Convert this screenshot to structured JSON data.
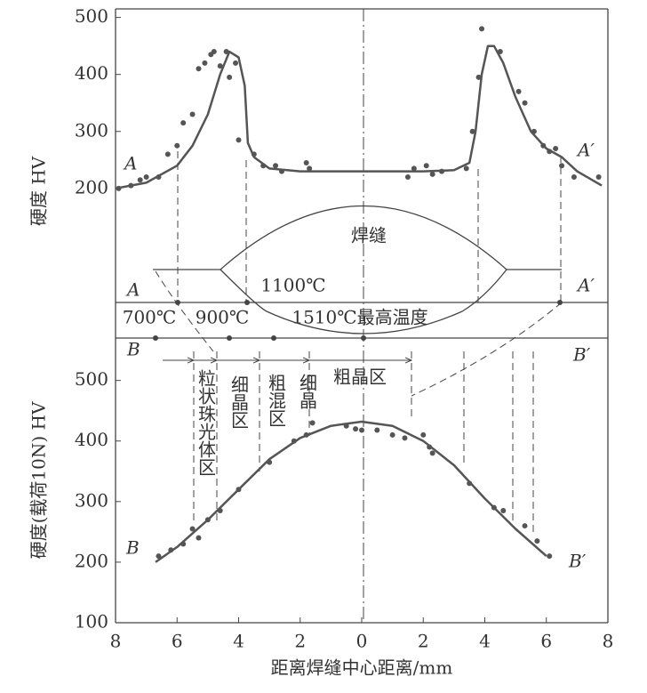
{
  "chart_data": [
    {
      "type": "scatter",
      "ylabel": "硬度 HV",
      "xlim": [
        -8,
        8
      ],
      "ylim": [
        0,
        515
      ],
      "yticks": [
        200,
        300,
        400,
        500
      ],
      "annotations": [
        "A",
        "A′"
      ],
      "series": [
        {
          "type": "scatter",
          "color": "#555555",
          "x": [
            -7.9,
            -7.5,
            -7.2,
            -7,
            -6.6,
            -6.3,
            -6,
            -5.8,
            -5.5,
            -5.3,
            -5.1,
            -4.9,
            -4.8,
            -4.6,
            -4.4,
            -4.3,
            -4.1,
            -4,
            -3.5,
            -3.2,
            -2.8,
            -2.6,
            -1.8,
            -1.7,
            1.5,
            1.7,
            2.1,
            2.3,
            2.6,
            3.4,
            3.6,
            3.8,
            3.9,
            4.5,
            5.1,
            5.3,
            5.6,
            5.9,
            6.1,
            6.3,
            6.5,
            6.9,
            7.7
          ],
          "values": [
            200,
            205,
            215,
            220,
            220,
            260,
            275,
            315,
            330,
            410,
            420,
            435,
            440,
            415,
            440,
            395,
            420,
            285,
            260,
            240,
            240,
            230,
            245,
            235,
            220,
            235,
            240,
            225,
            230,
            235,
            300,
            395,
            480,
            440,
            370,
            350,
            300,
            275,
            265,
            270,
            240,
            220,
            220
          ]
        },
        {
          "type": "line",
          "color": "#555555",
          "x": [
            -8,
            -7,
            -6,
            -5.5,
            -5,
            -4.6,
            -4.3,
            -4,
            -3.8,
            -3.7,
            -3.5,
            -3,
            -2,
            0,
            2,
            3,
            3.5,
            3.7,
            3.9,
            4.1,
            4.3,
            4.6,
            5,
            5.5,
            6,
            6.5,
            7,
            7.8
          ],
          "values": [
            200,
            210,
            240,
            275,
            330,
            400,
            440,
            430,
            380,
            280,
            255,
            235,
            230,
            230,
            230,
            232,
            245,
            300,
            400,
            450,
            450,
            420,
            360,
            300,
            270,
            255,
            230,
            205
          ]
        }
      ]
    },
    {
      "type": "scatter",
      "ylabel": "硬度(载荷10N) HV",
      "xlabel": "距离焊缝中心距离/mm",
      "xlim": [
        -8,
        8
      ],
      "ylim": [
        100,
        570
      ],
      "yticks": [
        100,
        200,
        300,
        400,
        500
      ],
      "xticks": [
        {
          "value": -8,
          "label": "8"
        },
        {
          "value": -6,
          "label": "6"
        },
        {
          "value": -4,
          "label": "4"
        },
        {
          "value": -2,
          "label": "2"
        },
        0,
        2,
        4,
        6,
        8
      ],
      "annotations": [
        "B",
        "B′"
      ],
      "series": [
        {
          "type": "scatter",
          "color": "#555555",
          "x": [
            -6.6,
            -6.2,
            -5.8,
            -5.5,
            -5.3,
            -5,
            -4.6,
            -4,
            -3,
            -2.2,
            -1.8,
            -1.6,
            -0.5,
            -0.2,
            0,
            0.5,
            1,
            1.4,
            2,
            2.2,
            2.3,
            3.5,
            4.3,
            4.6,
            5.3,
            5.7,
            6.1
          ],
          "values": [
            210,
            220,
            230,
            255,
            240,
            270,
            285,
            320,
            365,
            400,
            410,
            430,
            425,
            420,
            418,
            418,
            410,
            405,
            410,
            390,
            380,
            330,
            290,
            285,
            260,
            235,
            210
          ]
        },
        {
          "type": "line",
          "color": "#555555",
          "x": [
            -6.7,
            -6,
            -5,
            -4,
            -3,
            -2,
            -1,
            0,
            1,
            2,
            3,
            4,
            5,
            6
          ],
          "values": [
            200,
            225,
            270,
            320,
            370,
            405,
            425,
            432,
            425,
            400,
            360,
            305,
            255,
            210
          ]
        }
      ]
    }
  ],
  "diagram": {
    "weld": "焊缝",
    "line_a": [
      "A",
      "A′"
    ],
    "line_b": [
      "B",
      "B′"
    ],
    "temperatures": [
      "1100℃",
      "700℃",
      "900℃",
      "1510℃最高温度"
    ],
    "zones": [
      "粒状珠光体区",
      "细晶区",
      "粗混区",
      "细晶",
      "粗晶区"
    ]
  }
}
